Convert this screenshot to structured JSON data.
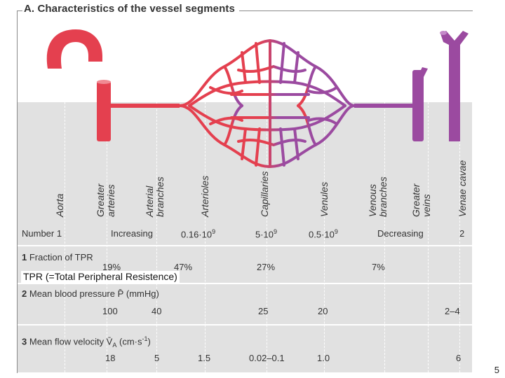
{
  "title": "A. Characteristics of the vessel segments",
  "segments": [
    {
      "id": "aorta",
      "lines": [
        "Aorta"
      ]
    },
    {
      "id": "greater-arteries",
      "lines": [
        "Greater",
        "arteries"
      ]
    },
    {
      "id": "arterial-branches",
      "lines": [
        "Arterial",
        "branches"
      ]
    },
    {
      "id": "arterioles",
      "lines": [
        "Arterioles"
      ]
    },
    {
      "id": "capillaries",
      "lines": [
        "Capillaries"
      ]
    },
    {
      "id": "venules",
      "lines": [
        "Venules"
      ]
    },
    {
      "id": "venous-branches",
      "lines": [
        "Venous",
        "branches"
      ]
    },
    {
      "id": "greater-veins",
      "lines": [
        "Greater",
        "veins"
      ]
    },
    {
      "id": "venae-cavae",
      "lines": [
        "Venae cavae"
      ]
    }
  ],
  "number_row": {
    "label": "Number",
    "values": [
      "1",
      "Increasing",
      "0.16·10",
      "9",
      "5·10",
      "9",
      "0.5·10",
      "9",
      "Decreasing",
      "2"
    ]
  },
  "tpr": {
    "label_num": "1",
    "label": "Fraction of TPR",
    "values": [
      "19%",
      "47%",
      "27%",
      "7%"
    ]
  },
  "pressure": {
    "label_num": "2",
    "label": "Mean blood pressure P̄ (mmHg)",
    "values": [
      "100",
      "40",
      "25",
      "20",
      "2–4"
    ]
  },
  "velocity": {
    "label_num": "3",
    "label_pre": "Mean flow velocity V̄",
    "label_sub": "A",
    "label_post": " (cm·s",
    "label_sup": "-1",
    "label_end": ")",
    "values": [
      "18",
      "5",
      "1.5",
      "0.02–0.1",
      "1.0",
      "6"
    ]
  },
  "overlay_note": "TPR (=Total Peripheral Resistence)",
  "page_number": "5",
  "colors": {
    "artery": "#e4404f",
    "vein": "#9b4aa0",
    "panel": "#e1e1e1"
  }
}
